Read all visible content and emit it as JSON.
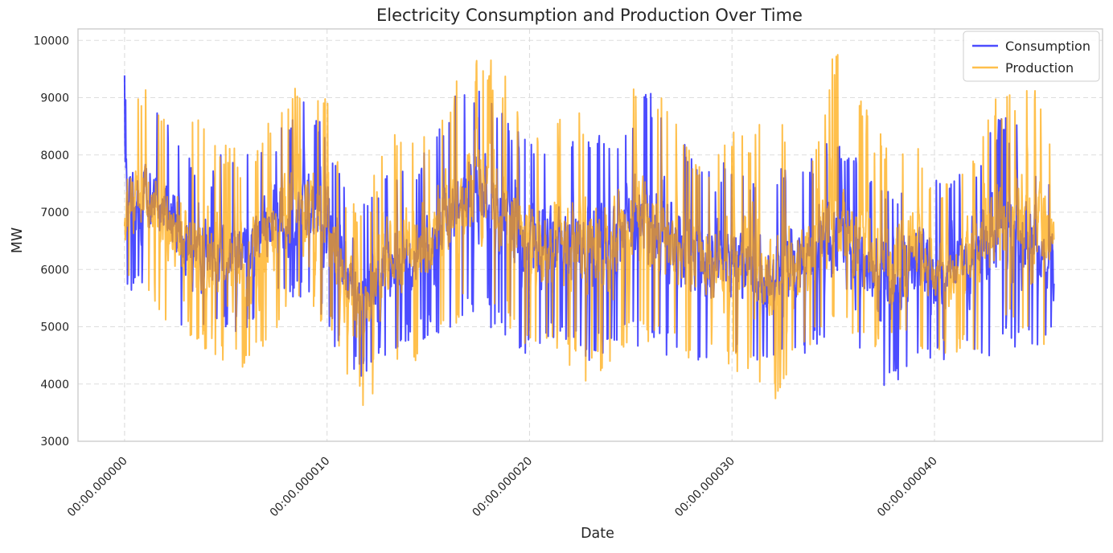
{
  "chart_data": {
    "type": "line",
    "title": "Electricity Consumption and Production Over Time",
    "xlabel": "Date",
    "ylabel": "MW",
    "x_tick_labels": [
      "00:00.000000",
      "00:00.000010",
      "00:00.000020",
      "00:00.000030",
      "00:00.000040"
    ],
    "x_ticks": [
      0,
      10,
      20,
      30,
      40
    ],
    "xlim": [
      -2.3,
      48.3
    ],
    "y_ticks": [
      3000,
      4000,
      5000,
      6000,
      7000,
      8000,
      9000,
      10000
    ],
    "ylim": [
      3000,
      10200
    ],
    "grid": true,
    "legend_position": "top-right",
    "sample_points": 46,
    "series": [
      {
        "name": "Consumption",
        "color": "#0000ff",
        "alpha": 0.7,
        "envelope_x": [
          0,
          1,
          2,
          3,
          4,
          5,
          6,
          7,
          8,
          9,
          10,
          11,
          12,
          13,
          14,
          15,
          16,
          17,
          18,
          19,
          20,
          21,
          22,
          23,
          24,
          25,
          26,
          27,
          28,
          29,
          30,
          31,
          32,
          33,
          34,
          35,
          36,
          37,
          38,
          39,
          40,
          41,
          42,
          43,
          44,
          45,
          45.9
        ],
        "upper": [
          9400,
          9100,
          8900,
          8200,
          7500,
          8200,
          8100,
          8100,
          8800,
          9100,
          8500,
          7600,
          7300,
          7900,
          7800,
          8100,
          8900,
          9400,
          9000,
          8700,
          8300,
          8200,
          8400,
          8300,
          8400,
          8900,
          9200,
          8600,
          8000,
          7700,
          8000,
          7500,
          7600,
          8000,
          8000,
          8500,
          8000,
          7600,
          7500,
          7800,
          7700,
          7700,
          8000,
          8700,
          8600,
          8000,
          7800
        ],
        "lower": [
          5300,
          5800,
          5700,
          4500,
          5000,
          4900,
          4900,
          5200,
          5400,
          5400,
          4900,
          4200,
          4100,
          4500,
          4700,
          4800,
          4900,
          5100,
          5000,
          4700,
          4400,
          4700,
          4600,
          4300,
          4600,
          4700,
          4600,
          4400,
          4200,
          4400,
          4500,
          4400,
          4300,
          4500,
          4500,
          4300,
          4300,
          4000,
          3900,
          4400,
          4400,
          4400,
          4400,
          4400,
          4500,
          4600,
          4800
        ],
        "mean": [
          7100,
          7300,
          7100,
          6200,
          6300,
          6400,
          6400,
          6700,
          7000,
          7100,
          6800,
          5800,
          5600,
          6100,
          6200,
          6400,
          6900,
          7300,
          7100,
          6800,
          6400,
          6400,
          6500,
          6300,
          6500,
          6800,
          6900,
          6500,
          6200,
          6100,
          6200,
          6000,
          5900,
          6200,
          6300,
          6500,
          6200,
          5800,
          5700,
          6100,
          6000,
          6000,
          6200,
          6600,
          6600,
          6300,
          6200
        ]
      },
      {
        "name": "Production",
        "color": "#ffa500",
        "alpha": 0.7,
        "envelope_x": [
          0,
          1,
          2,
          3,
          4,
          5,
          6,
          7,
          8,
          9,
          10,
          11,
          12,
          13,
          14,
          15,
          16,
          17,
          18,
          19,
          20,
          21,
          22,
          23,
          24,
          25,
          26,
          27,
          28,
          29,
          30,
          31,
          32,
          33,
          34,
          35,
          36,
          37,
          38,
          39,
          40,
          41,
          42,
          43,
          44,
          45,
          45.9
        ],
        "upper": [
          9000,
          9500,
          8900,
          8600,
          8900,
          8300,
          8000,
          8700,
          9300,
          9500,
          9000,
          7300,
          7300,
          8400,
          8500,
          8600,
          9100,
          9700,
          9800,
          9400,
          8700,
          8800,
          8700,
          8800,
          9000,
          9600,
          9500,
          8800,
          8200,
          7900,
          8500,
          8400,
          8800,
          8400,
          8300,
          9900,
          9500,
          8500,
          8300,
          8300,
          7500,
          7600,
          8300,
          9000,
          9200,
          9200,
          8400
        ],
        "lower": [
          5500,
          5700,
          5100,
          4700,
          4500,
          4200,
          4300,
          4600,
          5200,
          5300,
          5000,
          3900,
          3500,
          4200,
          4400,
          4400,
          4900,
          5300,
          5300,
          4900,
          4500,
          4500,
          4200,
          4000,
          4400,
          4600,
          4700,
          4400,
          4300,
          4300,
          4200,
          4100,
          3300,
          4300,
          4600,
          4900,
          4700,
          4600,
          4500,
          4700,
          4500,
          4500,
          4500,
          4800,
          4900,
          4800,
          3700
        ],
        "mean": [
          7000,
          7200,
          6800,
          6400,
          6400,
          6000,
          6000,
          6500,
          7000,
          7200,
          6900,
          5400,
          5400,
          6100,
          6300,
          6400,
          6900,
          7400,
          7400,
          7000,
          6500,
          6500,
          6400,
          6300,
          6500,
          7000,
          7000,
          6500,
          6200,
          6000,
          6300,
          6100,
          5900,
          6200,
          6400,
          6900,
          6700,
          6300,
          6100,
          6300,
          5900,
          5900,
          6300,
          6800,
          6900,
          6800,
          6500
        ]
      }
    ]
  }
}
